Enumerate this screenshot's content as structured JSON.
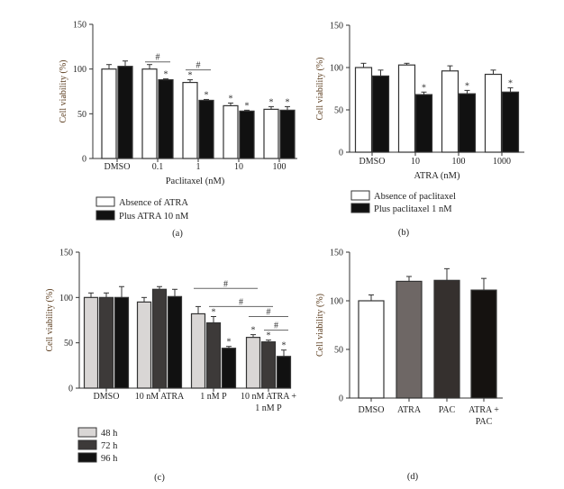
{
  "chart_data": [
    {
      "type": "bar",
      "panel_label": "(a)",
      "ylabel": "Cell viability (%)",
      "xlabel": "Paclitaxel (nM)",
      "ylim": [
        0,
        150
      ],
      "yticks": [
        0,
        50,
        100,
        150
      ],
      "categories": [
        "DMSO",
        "0.1",
        "1",
        "10",
        "100"
      ],
      "series": [
        {
          "name": "Absence of ATRA",
          "color": "#ffffff",
          "values": [
            100,
            100,
            85,
            59,
            55
          ],
          "errors": [
            5,
            5,
            3,
            3,
            3
          ],
          "stars": [
            false,
            false,
            true,
            true,
            true
          ]
        },
        {
          "name": "Plus ATRA 10 nM",
          "color": "#111111",
          "values": [
            103,
            88,
            65,
            53,
            54
          ],
          "errors": [
            6,
            1,
            1,
            1,
            4
          ],
          "stars": [
            false,
            true,
            true,
            true,
            true
          ]
        }
      ],
      "brackets": [
        {
          "from": [
            1,
            0
          ],
          "to": [
            1,
            1
          ],
          "y": 108,
          "label": "#"
        },
        {
          "from": [
            2,
            0
          ],
          "to": [
            2,
            1
          ],
          "y": 99,
          "label": "#"
        }
      ]
    },
    {
      "type": "bar",
      "panel_label": "(b)",
      "ylabel": "Cell viability (%)",
      "xlabel": "ATRA (nM)",
      "ylim": [
        0,
        150
      ],
      "yticks": [
        0,
        50,
        100,
        150
      ],
      "categories": [
        "DMSO",
        "10",
        "100",
        "1000"
      ],
      "series": [
        {
          "name": "Absence of paclitaxel",
          "color": "#ffffff",
          "values": [
            100,
            103,
            96,
            92
          ],
          "errors": [
            5,
            2,
            6,
            5
          ],
          "stars": [
            false,
            false,
            false,
            false
          ]
        },
        {
          "name": "Plus paclitaxel 1 nM",
          "color": "#111111",
          "values": [
            90,
            68,
            69,
            71
          ],
          "errors": [
            7,
            3,
            4,
            5
          ],
          "stars": [
            false,
            true,
            true,
            true
          ]
        }
      ],
      "brackets": []
    },
    {
      "type": "bar",
      "panel_label": "(c)",
      "ylabel": "Cell viability (%)",
      "xlabel": "",
      "ylim": [
        0,
        150
      ],
      "yticks": [
        0,
        50,
        100,
        150
      ],
      "categories": [
        [
          "DMSO"
        ],
        [
          "10 nM ATRA"
        ],
        [
          "1 nM P"
        ],
        [
          "10 nM ATRA +",
          "1 nM P"
        ]
      ],
      "series": [
        {
          "name": "48 h",
          "color": "#d9d6d5",
          "values": [
            100,
            95,
            82,
            56
          ],
          "errors": [
            5,
            5,
            8,
            3
          ],
          "stars": [
            false,
            false,
            false,
            true
          ]
        },
        {
          "name": "72 h",
          "color": "#3d3a39",
          "values": [
            100,
            109,
            72,
            51
          ],
          "errors": [
            5,
            3,
            7,
            2
          ],
          "stars": [
            false,
            false,
            true,
            true
          ]
        },
        {
          "name": "96 h",
          "color": "#111111",
          "values": [
            100,
            101,
            44,
            35
          ],
          "errors": [
            12,
            8,
            2,
            7
          ],
          "stars": [
            false,
            false,
            true,
            true
          ]
        }
      ],
      "brackets": [
        {
          "from": [
            2,
            0
          ],
          "to": [
            3,
            0
          ],
          "y": 110,
          "label": "#"
        },
        {
          "from": [
            2,
            1
          ],
          "to": [
            3,
            1
          ],
          "y": 90,
          "label": "#"
        },
        {
          "from": [
            3,
            0
          ],
          "to": [
            3,
            2
          ],
          "y": 79,
          "label": "#"
        },
        {
          "from": [
            3,
            1
          ],
          "to": [
            3,
            2
          ],
          "y": 64,
          "label": "#"
        }
      ]
    },
    {
      "type": "bar",
      "panel_label": "(d)",
      "ylabel": "Cell viability (%)",
      "xlabel": "",
      "ylim": [
        0,
        150
      ],
      "yticks": [
        0,
        50,
        100,
        150
      ],
      "categories": [
        [
          "DMSO"
        ],
        [
          "ATRA"
        ],
        [
          "PAC"
        ],
        [
          "ATRA +",
          "PAC"
        ]
      ],
      "series": [
        {
          "colors": [
            "#ffffff",
            "#6e6765",
            "#35302e",
            "#151210"
          ],
          "values": [
            100,
            120,
            121,
            111
          ],
          "errors": [
            6,
            5,
            12,
            12
          ],
          "stars": [
            false,
            false,
            false,
            false
          ]
        }
      ],
      "brackets": []
    }
  ]
}
